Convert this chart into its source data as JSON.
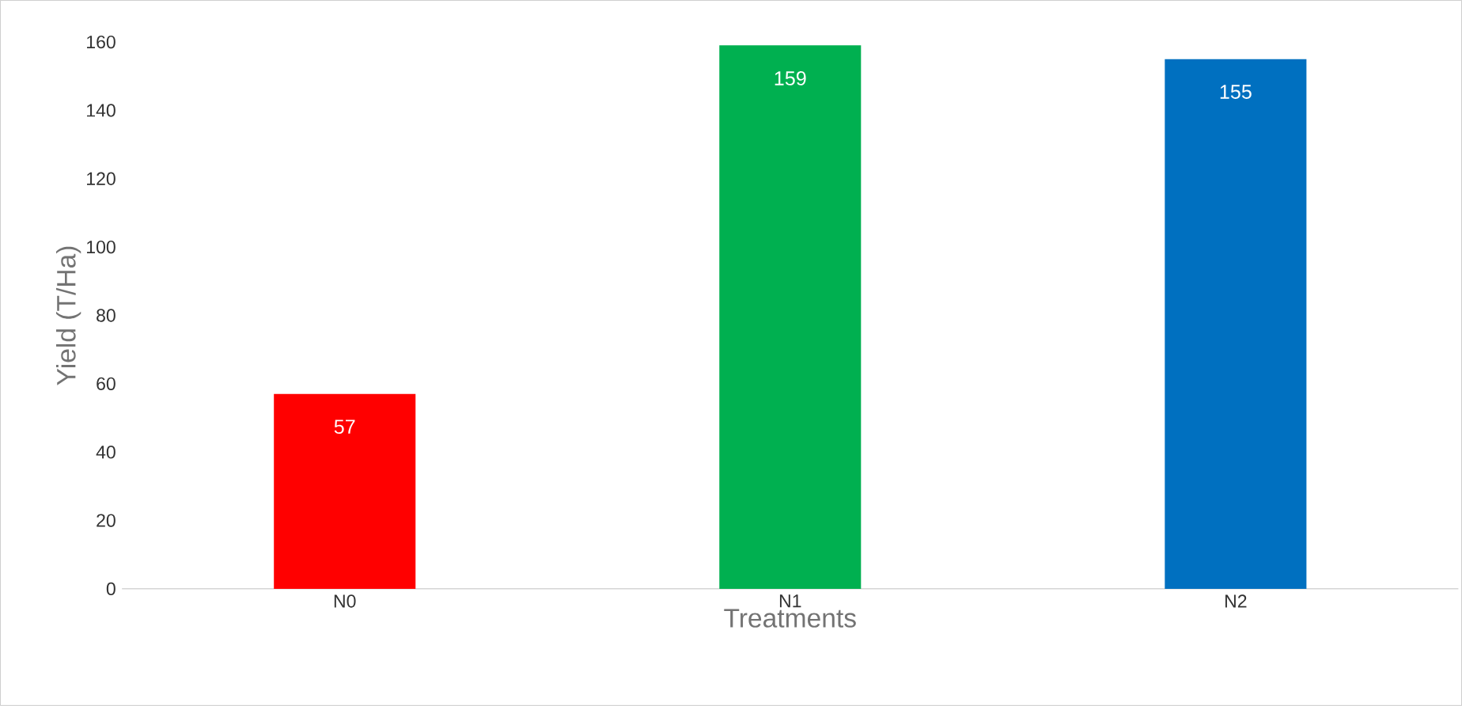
{
  "chart_data": {
    "type": "bar",
    "xlabel": "Treatments",
    "ylabel": "Yield (T/Ha)",
    "categories": [
      "N0",
      "N1",
      "N2"
    ],
    "values": [
      57,
      159,
      155
    ],
    "colors": [
      "#ff0000",
      "#00b050",
      "#0070c0"
    ],
    "ylim": [
      0,
      160
    ],
    "yticks": [
      0,
      20,
      40,
      60,
      80,
      100,
      120,
      140,
      160
    ],
    "data_labels": true
  }
}
